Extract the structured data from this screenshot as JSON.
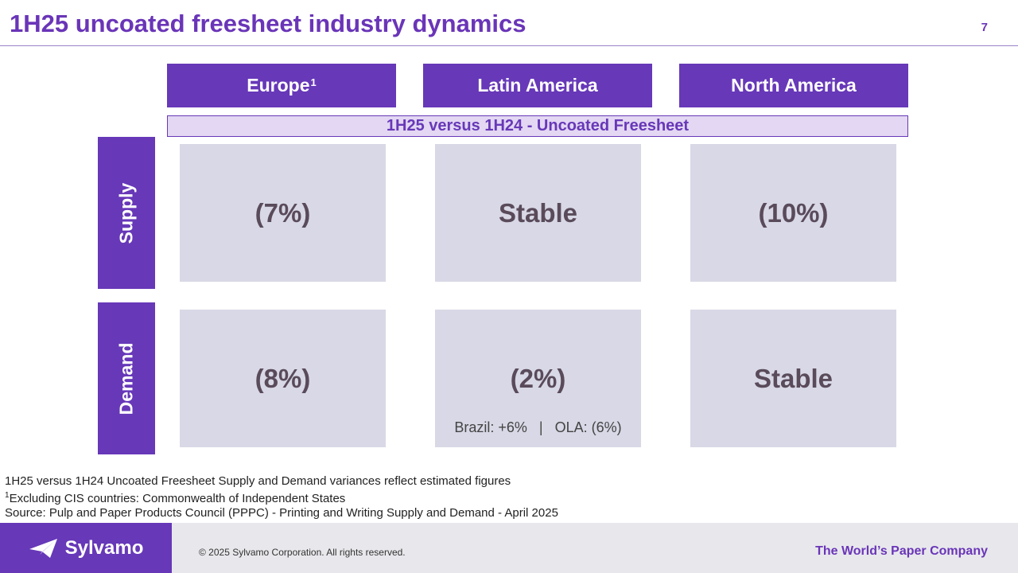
{
  "header": {
    "title": "1H25 uncoated freesheet industry dynamics",
    "page_number": "7"
  },
  "regions": [
    {
      "label": "Europe",
      "footnote_mark": "1"
    },
    {
      "label": "Latin America"
    },
    {
      "label": "North America"
    }
  ],
  "comparison_label": "1H25 versus 1H24 - Uncoated Freesheet",
  "rows": {
    "supply": {
      "label": "Supply",
      "values": [
        "(7%)",
        "Stable",
        "(10%)"
      ]
    },
    "demand": {
      "label": "Demand",
      "values": [
        "(8%)",
        "(2%)",
        "Stable"
      ],
      "latin_america_note": "Brazil: +6%   |   OLA: (6%)"
    }
  },
  "footnotes": {
    "line1": "1H25 versus 1H24 Uncoated Freesheet Supply and Demand variances reflect estimated figures",
    "line2_mark": "1",
    "line2": "Excluding CIS countries: Commonwealth of Independent States",
    "line3": "Source: Pulp and Paper Products Council (PPPC) - Printing and Writing Supply and Demand - April 2025"
  },
  "footer": {
    "logo_text": "Sylvamo",
    "copyright": "© 2025 Sylvamo Corporation. All rights reserved.",
    "tagline": "The World’s Paper Company"
  },
  "colors": {
    "accent": "#6738b8",
    "cell_bg": "#d8d8e6",
    "band_bg": "#e3d7f3",
    "footer_bg": "#e8e8ec"
  }
}
